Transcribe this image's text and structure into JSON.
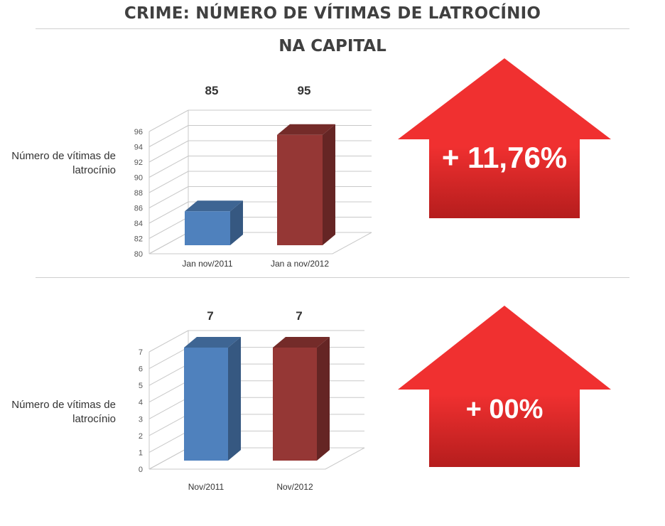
{
  "title": "CRIME: NÚMERO DE VÍTIMAS DE LATROCÍNIO",
  "subtitle": "NA CAPITAL",
  "colors": {
    "series1": "#4f81bd",
    "series2": "#953735",
    "arrow_top": "#f03030",
    "arrow_bottom": "#b51d1d"
  },
  "chart_data": [
    {
      "type": "bar",
      "ylabel": "Número de vítimas de latrocínio",
      "categories": [
        "Jan nov/2011",
        "Jan a nov/2012"
      ],
      "values": [
        85,
        95
      ],
      "data_labels": [
        "85",
        "95"
      ],
      "ylim": [
        80,
        96
      ],
      "yticks": [
        80,
        82,
        84,
        86,
        88,
        90,
        92,
        94,
        96
      ],
      "grid": true,
      "change_label": "+ 11,76%"
    },
    {
      "type": "bar",
      "ylabel": "Número de vítimas de latrocínio",
      "categories": [
        "Nov/2011",
        "Nov/2012"
      ],
      "values": [
        7,
        7
      ],
      "data_labels": [
        "7",
        "7"
      ],
      "ylim": [
        0,
        7
      ],
      "yticks": [
        0,
        1,
        2,
        3,
        4,
        5,
        6,
        7
      ],
      "grid": true,
      "change_label": "+ 00%"
    }
  ]
}
